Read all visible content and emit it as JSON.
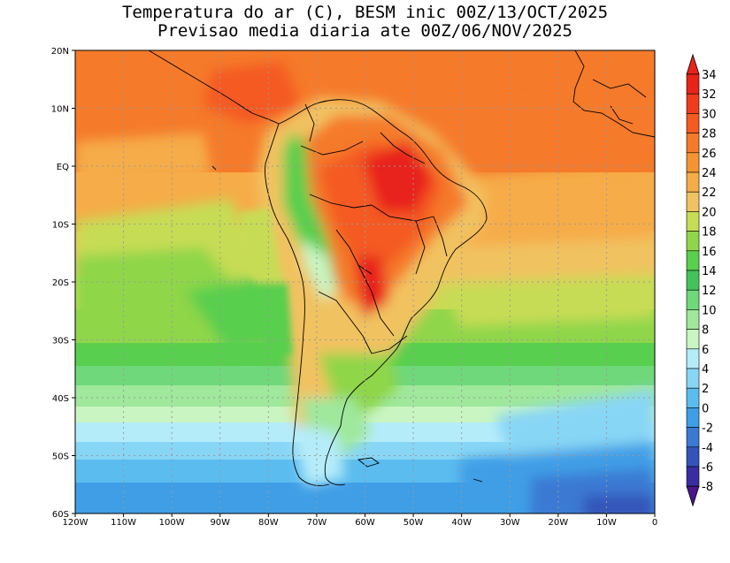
{
  "title": {
    "line1": "Temperatura do ar (C), BESM inic 00Z/13/OCT/2025",
    "line2": "Previsao media diaria ate 00Z/06/NOV/2025"
  },
  "map": {
    "lon_range": [
      -120,
      0
    ],
    "lat_range": [
      -60,
      20
    ],
    "x_ticks": [
      "120W",
      "110W",
      "100W",
      "90W",
      "80W",
      "70W",
      "60W",
      "50W",
      "40W",
      "30W",
      "20W",
      "10W",
      "0"
    ],
    "y_ticks": [
      "20N",
      "10N",
      "EQ",
      "10S",
      "20S",
      "30S",
      "40S",
      "50S",
      "60S"
    ],
    "gridlines": true
  },
  "colorbar": {
    "labels": [
      "34",
      "32",
      "30",
      "28",
      "26",
      "24",
      "22",
      "20",
      "18",
      "16",
      "14",
      "12",
      "10",
      "8",
      "6",
      "4",
      "2",
      "0",
      "-2",
      "-4",
      "-6",
      "-8"
    ],
    "colors": [
      "#e8231a",
      "#f03c1e",
      "#f45a22",
      "#f57a2a",
      "#f49432",
      "#f6ac48",
      "#f1c261",
      "#c7dc55",
      "#8fd64a",
      "#58cf4e",
      "#45c35a",
      "#6fd87a",
      "#9fe89c",
      "#c9f5c2",
      "#b5ecfa",
      "#88d6f5",
      "#5bbcef",
      "#3f9ee6",
      "#3b79d3",
      "#3454b9",
      "#3a2da2",
      "#4a168c"
    ]
  }
}
